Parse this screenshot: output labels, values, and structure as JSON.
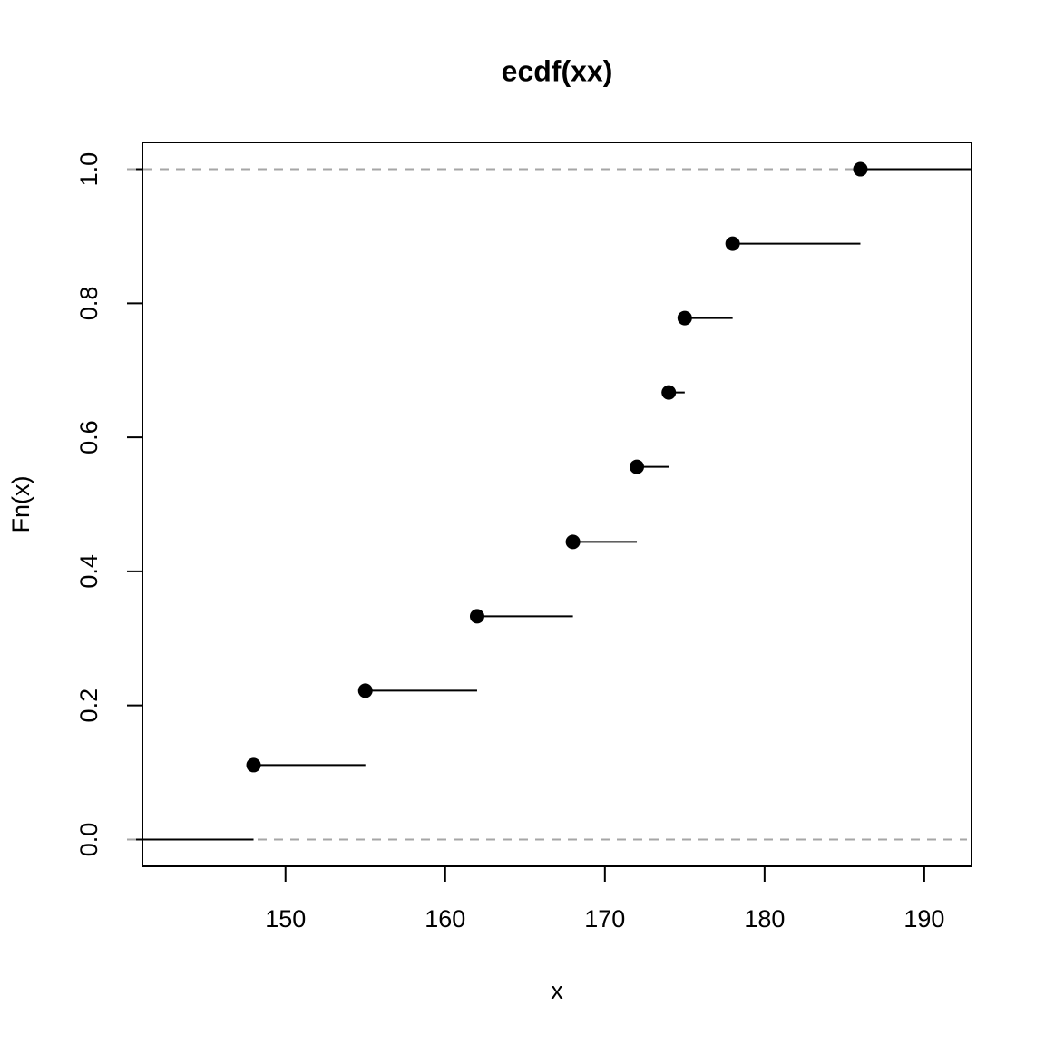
{
  "chart_data": {
    "type": "ecdf",
    "title": "ecdf(xx)",
    "x_label": "x",
    "y_label": "Fn(x)",
    "x": [
      148,
      155,
      162,
      168,
      172,
      174,
      175,
      178,
      186
    ],
    "values": [
      0.111,
      0.222,
      0.333,
      0.444,
      0.556,
      0.667,
      0.778,
      0.889,
      1.0
    ],
    "hlines": [
      0,
      1
    ],
    "color": "#000000",
    "hline_color": "#a6a6a6",
    "xlim": [
      141.04,
      192.96
    ],
    "ylim": [
      -0.04,
      1.04
    ],
    "xticks": [
      150,
      160,
      170,
      180,
      190
    ],
    "yticks": [
      {
        "value": 0,
        "label": "0.0"
      },
      0.2,
      0.4,
      0.6,
      0.8,
      {
        "value": 1,
        "label": "1.0"
      }
    ]
  }
}
